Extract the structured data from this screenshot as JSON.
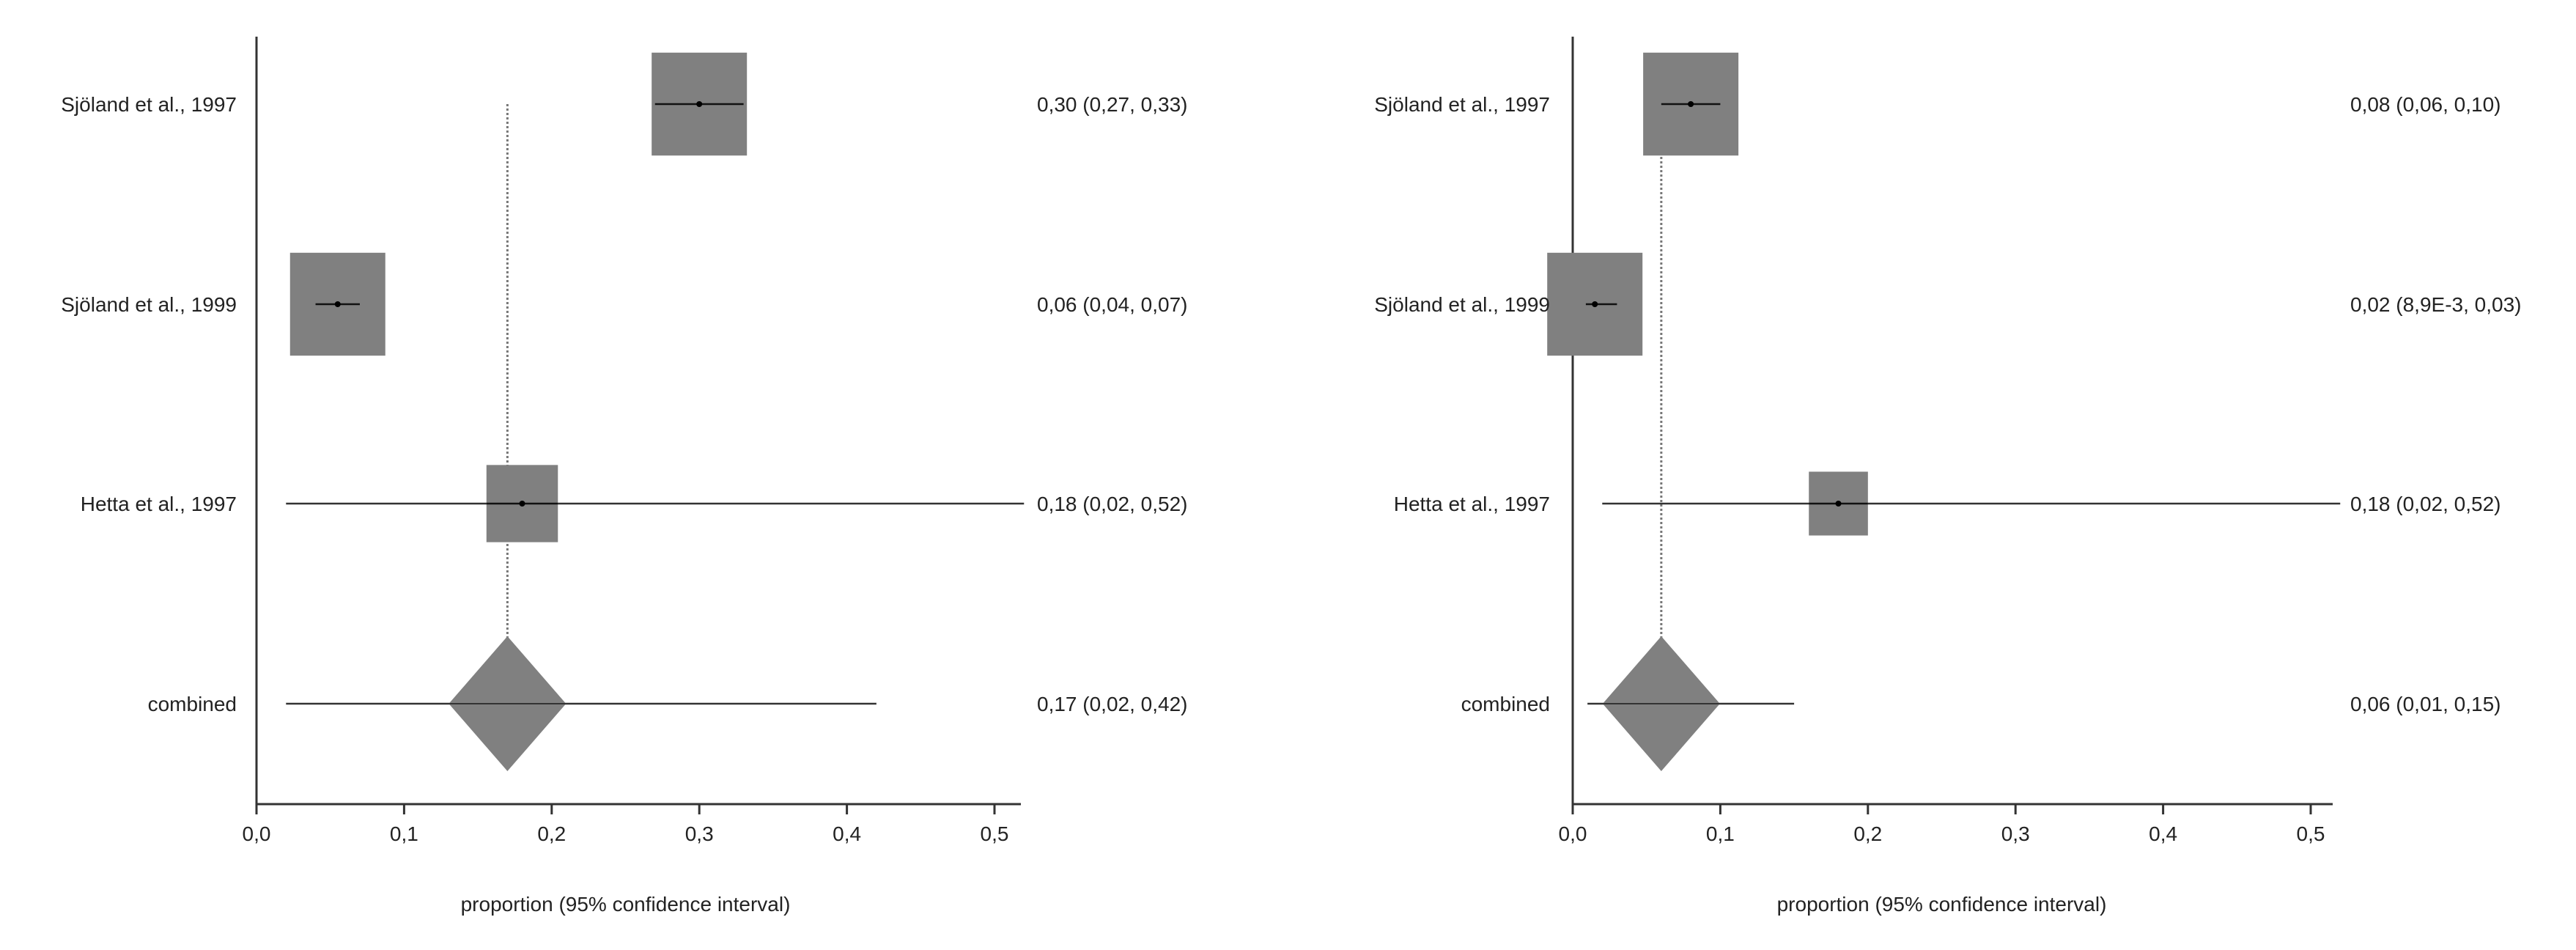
{
  "colors": {
    "marker": "#808080",
    "line": "#333333",
    "text": "#222222"
  },
  "chart_data": [
    {
      "type": "forest",
      "xlabel": "proportion (95% confidence interval)",
      "xlim": [
        0,
        0.52
      ],
      "x_ticks": [
        0,
        0.1,
        0.2,
        0.3,
        0.4,
        0.5
      ],
      "x_tick_labels": [
        "0,0",
        "0,1",
        "0,2",
        "0,3",
        "0,4",
        "0,5"
      ],
      "studies": [
        {
          "label": "Sjöland et al., 1997",
          "estimate": 0.3,
          "lower": 0.27,
          "upper": 0.33,
          "weight": 1.0,
          "ci_text": "0,30 (0,27, 0,33)"
        },
        {
          "label": "Sjöland et al., 1999",
          "estimate": 0.055,
          "lower": 0.04,
          "upper": 0.07,
          "weight": 1.0,
          "ci_text": "0,06 (0,04, 0,07)"
        },
        {
          "label": "Hetta et al., 1997",
          "estimate": 0.18,
          "lower": 0.02,
          "upper": 0.52,
          "weight": 0.75,
          "ci_text": "0,18 (0,02, 0,52)"
        }
      ],
      "combined": {
        "label": "combined",
        "estimate": 0.17,
        "lower": 0.02,
        "upper": 0.42,
        "ci_text": "0,17 (0,02, 0,42)"
      }
    },
    {
      "type": "forest",
      "xlabel": "proportion (95% confidence interval)",
      "xlim": [
        0,
        0.52
      ],
      "x_ticks": [
        0,
        0.1,
        0.2,
        0.3,
        0.4,
        0.5
      ],
      "x_tick_labels": [
        "0,0",
        "0,1",
        "0,2",
        "0,3",
        "0,4",
        "0,5"
      ],
      "studies": [
        {
          "label": "Sjöland et al., 1997",
          "estimate": 0.08,
          "lower": 0.06,
          "upper": 0.1,
          "weight": 1.0,
          "ci_text": "0,08 (0,06, 0,10)"
        },
        {
          "label": "Sjöland et al., 1999",
          "estimate": 0.015,
          "lower": 0.0089,
          "upper": 0.03,
          "weight": 1.0,
          "ci_text": "0,02 (8,9E-3, 0,03)"
        },
        {
          "label": "Hetta et al., 1997",
          "estimate": 0.18,
          "lower": 0.02,
          "upper": 0.52,
          "weight": 0.62,
          "ci_text": "0,18 (0,02, 0,52)"
        }
      ],
      "combined": {
        "label": "combined",
        "estimate": 0.06,
        "lower": 0.01,
        "upper": 0.15,
        "ci_text": "0,06 (0,01, 0,15)"
      }
    }
  ]
}
